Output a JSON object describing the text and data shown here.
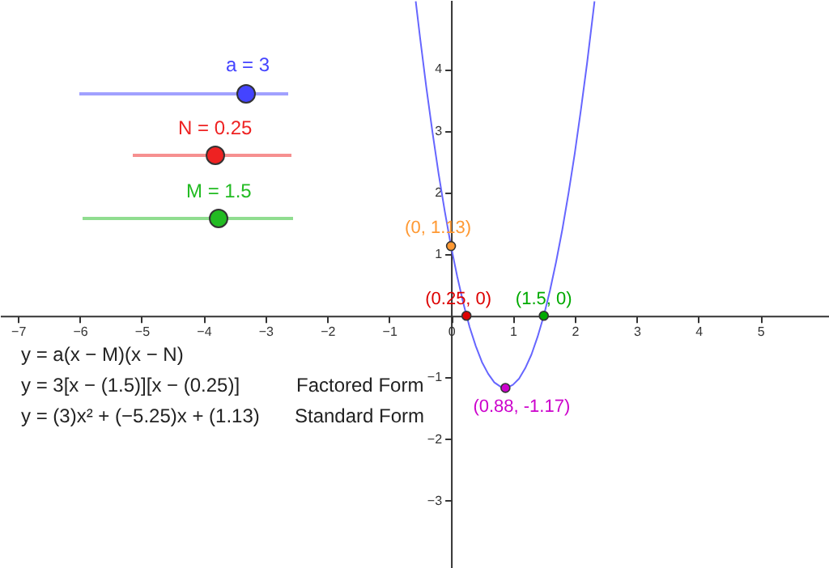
{
  "chart_data": {
    "type": "line",
    "xlim": [
      -7.29,
      6.11
    ],
    "ylim": [
      -4.09,
      5.12
    ],
    "xticks": [
      -7,
      -6,
      -5,
      -4,
      -3,
      -2,
      -1,
      0,
      1,
      2,
      3,
      4,
      5
    ],
    "yticks": [
      -3,
      -2,
      -1,
      1,
      2,
      3,
      4
    ],
    "series": [
      {
        "type": "line",
        "color": "#6666ff",
        "x": [
          -0.57,
          -0.5,
          -0.4,
          -0.3,
          -0.2,
          -0.1,
          0,
          0.1,
          0.2,
          0.3,
          0.4,
          0.5,
          0.6,
          0.7,
          0.8,
          0.88,
          0.9,
          1,
          1.1,
          1.2,
          1.3,
          1.4,
          1.5,
          1.6,
          1.7,
          1.8,
          1.9,
          2,
          2.1,
          2.2,
          2.3,
          2.32
        ],
        "values": [
          5.1,
          4.51,
          3.71,
          2.98,
          2.3,
          1.69,
          1.13,
          0.64,
          0.2,
          -0.18,
          -0.49,
          -0.75,
          -0.94,
          -1.08,
          -1.15,
          -1.17,
          -1.17,
          -1.12,
          -1.02,
          -0.85,
          -0.63,
          -0.34,
          0,
          0.41,
          0.88,
          1.4,
          1.99,
          2.63,
          3.34,
          4.1,
          4.93,
          5.1
        ]
      },
      {
        "type": "scatter",
        "marker": "circle",
        "color": "#ff9933",
        "x": [
          0
        ],
        "values": [
          1.13
        ]
      },
      {
        "type": "scatter",
        "marker": "circle",
        "color": "#dd0000",
        "x": [
          0.25
        ],
        "values": [
          0
        ]
      },
      {
        "type": "scatter",
        "marker": "circle",
        "color": "#00aa00",
        "x": [
          1.5
        ],
        "values": [
          0
        ]
      },
      {
        "type": "scatter",
        "marker": "circle",
        "color": "#cc00cc",
        "x": [
          0.88
        ],
        "values": [
          -1.17
        ]
      }
    ],
    "annotations": [
      "a = 3",
      "N = 0.25",
      "M = 1.5",
      "y = a(x − M)(x − N)",
      "y = 3[x − (1.5)][x − (0.25)]",
      "y = (3)x² + (−5.25)x + (1.13)",
      "Factored Form",
      "Standard Form",
      {
        "text": "(0, 1.13)",
        "x": 0,
        "y": 1.13
      },
      {
        "text": "(0.25, 0)",
        "x": 0.25,
        "y": 0
      },
      {
        "text": "(1.5, 0)",
        "x": 1.5,
        "y": 0
      },
      {
        "text": "(0.88, -1.17)",
        "x": 0.88,
        "y": -1.17
      }
    ]
  }
}
